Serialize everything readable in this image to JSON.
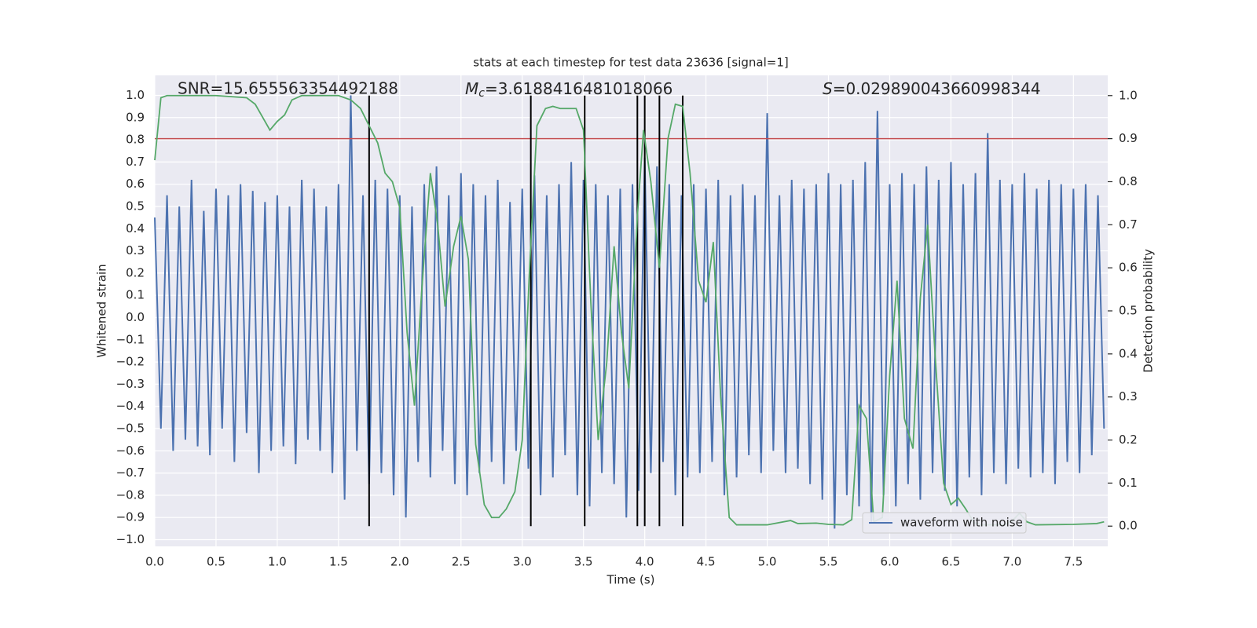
{
  "chart_data": {
    "type": "line",
    "title": "stats at each timestep for test data 23636 [signal=1]",
    "xlabel": "Time (s)",
    "ylabel": "Whitened strain",
    "y2label": "Detection probability",
    "snr_text": "SNR=15.655563354492188",
    "mc_text": {
      "symbol": "M",
      "subscript": "c",
      "rest": "=3.6188416481018066"
    },
    "s_text": {
      "symbol": "S",
      "rest": "=0.029890043660998344"
    },
    "xlim": [
      0,
      7.78
    ],
    "ylim": [
      -1.03,
      1.09
    ],
    "y2lim": [
      -0.047,
      1.047
    ],
    "xticks": [
      {
        "value": 0,
        "label": "0.0"
      },
      0.5,
      {
        "value": 1,
        "label": "1.0"
      },
      1.5,
      {
        "value": 2,
        "label": "2.0"
      },
      2.5,
      {
        "value": 3,
        "label": "3.0"
      },
      3.5,
      {
        "value": 4,
        "label": "4.0"
      },
      4.5,
      {
        "value": 5,
        "label": "5.0"
      },
      5.5,
      {
        "value": 6,
        "label": "6.0"
      },
      6.5,
      {
        "value": 7,
        "label": "7.0"
      },
      7.5
    ],
    "yticks": [
      {
        "value": 1,
        "label": "1.0"
      },
      0.9,
      0.8,
      0.7,
      0.6,
      0.5,
      0.4,
      0.3,
      0.2,
      0.1,
      {
        "value": 0,
        "label": "0.0"
      },
      {
        "value": -0.1,
        "label": "−0.1"
      },
      {
        "value": -0.2,
        "label": "−0.2"
      },
      {
        "value": -0.3,
        "label": "−0.3"
      },
      {
        "value": -0.4,
        "label": "−0.4"
      },
      {
        "value": -0.5,
        "label": "−0.5"
      },
      {
        "value": -0.6,
        "label": "−0.6"
      },
      {
        "value": -0.7,
        "label": "−0.7"
      },
      {
        "value": -0.8,
        "label": "−0.8"
      },
      {
        "value": -0.9,
        "label": "−0.9"
      },
      {
        "value": -1,
        "label": "−1.0"
      }
    ],
    "y2ticks": [
      {
        "value": 0,
        "label": "0.0"
      },
      0.1,
      0.2,
      0.3,
      0.4,
      0.5,
      0.6,
      0.7,
      0.8,
      0.9,
      {
        "value": 1,
        "label": "1.0"
      }
    ],
    "grid": true,
    "legend": "lower right",
    "threshold": {
      "value": 0.9,
      "axis": "y2",
      "color": "#c44e52"
    },
    "vlines": {
      "x": [
        1.75,
        3.07,
        3.51,
        3.94,
        4.0,
        4.12,
        4.31
      ],
      "color": "#000000",
      "axis": "y2",
      "from": 0,
      "to": 1
    },
    "series": [
      {
        "name": "waveform with noise",
        "color": "#4c72b0",
        "x": [
          0,
          0.05,
          0.1,
          0.15,
          0.2,
          0.25,
          0.3,
          0.35,
          0.4,
          0.45,
          0.5,
          0.55,
          0.6,
          0.65,
          0.7,
          0.75,
          0.8,
          0.85,
          0.9,
          0.95,
          1,
          1.05,
          1.1,
          1.15,
          1.2,
          1.25,
          1.3,
          1.35,
          1.4,
          1.45,
          1.5,
          1.55,
          1.6,
          1.65,
          1.7,
          1.75,
          1.8,
          1.85,
          1.9,
          1.95,
          2,
          2.05,
          2.1,
          2.15,
          2.2,
          2.25,
          2.3,
          2.35,
          2.4,
          2.45,
          2.5,
          2.55,
          2.6,
          2.65,
          2.7,
          2.75,
          2.8,
          2.85,
          2.9,
          2.95,
          3,
          3.05,
          3.1,
          3.15,
          3.2,
          3.25,
          3.3,
          3.35,
          3.4,
          3.45,
          3.5,
          3.55,
          3.6,
          3.65,
          3.7,
          3.75,
          3.8,
          3.85,
          3.9,
          3.95,
          4,
          4.05,
          4.1,
          4.15,
          4.2,
          4.25,
          4.3,
          4.35,
          4.4,
          4.45,
          4.5,
          4.55,
          4.6,
          4.65,
          4.7,
          4.75,
          4.8,
          4.85,
          4.9,
          4.95,
          5,
          5.05,
          5.1,
          5.15,
          5.2,
          5.25,
          5.3,
          5.35,
          5.4,
          5.45,
          5.5,
          5.55,
          5.6,
          5.65,
          5.7,
          5.75,
          5.8,
          5.85,
          5.9,
          5.95,
          6,
          6.05,
          6.1,
          6.15,
          6.2,
          6.25,
          6.3,
          6.35,
          6.4,
          6.45,
          6.5,
          6.55,
          6.6,
          6.65,
          6.7,
          6.75,
          6.8,
          6.85,
          6.9,
          6.95,
          7,
          7.05,
          7.1,
          7.15,
          7.2,
          7.25,
          7.3,
          7.35,
          7.4,
          7.45,
          7.5,
          7.55,
          7.6,
          7.65,
          7.7,
          7.75
        ],
        "values": [
          0.45,
          -0.5,
          0.55,
          -0.6,
          0.5,
          -0.55,
          0.62,
          -0.58,
          0.48,
          -0.62,
          0.58,
          -0.5,
          0.55,
          -0.65,
          0.6,
          -0.52,
          0.57,
          -0.7,
          0.52,
          -0.6,
          0.55,
          -0.58,
          0.5,
          -0.66,
          0.62,
          -0.55,
          0.58,
          -0.6,
          0.5,
          -0.7,
          0.6,
          -0.82,
          1.0,
          -0.6,
          0.55,
          -0.75,
          0.62,
          -0.7,
          0.58,
          -0.8,
          0.55,
          -0.9,
          0.5,
          -0.65,
          0.6,
          -0.72,
          0.68,
          -0.6,
          0.55,
          -0.75,
          0.65,
          -0.8,
          0.6,
          -0.7,
          0.55,
          -0.65,
          0.62,
          -0.75,
          0.52,
          -0.6,
          0.58,
          -0.68,
          0.64,
          -0.8,
          0.55,
          -0.72,
          0.6,
          -0.62,
          0.7,
          -0.8,
          0.62,
          -0.85,
          0.6,
          -0.7,
          0.55,
          -0.75,
          0.58,
          -0.9,
          0.6,
          -0.78,
          0.72,
          -0.7,
          0.68,
          -0.65,
          0.6,
          -0.8,
          0.55,
          -0.72,
          0.6,
          -0.7,
          0.58,
          -0.65,
          0.62,
          -0.8,
          0.55,
          -0.72,
          0.6,
          -0.62,
          0.55,
          -0.7,
          0.92,
          -0.6,
          0.55,
          -0.7,
          0.62,
          -0.68,
          0.58,
          -0.75,
          0.6,
          -0.82,
          0.65,
          -0.95,
          0.6,
          -0.8,
          0.62,
          -0.85,
          0.7,
          -0.92,
          0.93,
          -0.8,
          0.6,
          -0.85,
          0.65,
          -0.75,
          0.6,
          -0.82,
          0.68,
          -0.7,
          0.62,
          -0.78,
          0.7,
          -0.85,
          0.6,
          -0.72,
          0.65,
          -0.8,
          0.83,
          -0.7,
          0.62,
          -0.75,
          0.6,
          -0.68,
          0.65,
          -0.72,
          0.58,
          -0.7,
          0.62,
          -0.75,
          0.6,
          -0.65,
          0.58,
          -0.7,
          0.6,
          -0.62,
          0.55,
          -0.5
        ]
      },
      {
        "color": "#55a868",
        "axis": "y2",
        "x": [
          0,
          0.05,
          0.1,
          0.5,
          0.75,
          0.82,
          0.88,
          0.94,
          1.0,
          1.06,
          1.12,
          1.2,
          1.5,
          1.6,
          1.68,
          1.75,
          1.82,
          1.88,
          1.94,
          2.0,
          2.06,
          2.12,
          2.18,
          2.25,
          2.31,
          2.37,
          2.44,
          2.5,
          2.56,
          2.62,
          2.69,
          2.75,
          2.81,
          2.87,
          2.94,
          3.0,
          3.06,
          3.12,
          3.19,
          3.25,
          3.31,
          3.44,
          3.5,
          3.56,
          3.62,
          3.69,
          3.75,
          3.81,
          3.87,
          3.94,
          3.99,
          4.05,
          4.12,
          4.19,
          4.25,
          4.31,
          4.37,
          4.44,
          4.5,
          4.56,
          4.62,
          4.69,
          4.75,
          5.0,
          5.19,
          5.25,
          5.4,
          5.5,
          5.62,
          5.69,
          5.75,
          5.81,
          5.87,
          5.94,
          6.0,
          6.06,
          6.12,
          6.19,
          6.25,
          6.31,
          6.37,
          6.44,
          6.5,
          6.56,
          6.62,
          6.69,
          6.75,
          6.94,
          7.0,
          7.06,
          7.12,
          7.19,
          7.5,
          7.69,
          7.75
        ],
        "values": [
          0.85,
          0.995,
          1.0,
          1.0,
          0.995,
          0.98,
          0.95,
          0.92,
          0.94,
          0.955,
          0.99,
          1.0,
          1.0,
          0.99,
          0.97,
          0.93,
          0.89,
          0.82,
          0.8,
          0.74,
          0.45,
          0.28,
          0.55,
          0.82,
          0.7,
          0.51,
          0.65,
          0.72,
          0.62,
          0.19,
          0.05,
          0.02,
          0.02,
          0.04,
          0.08,
          0.2,
          0.6,
          0.93,
          0.97,
          0.975,
          0.97,
          0.97,
          0.92,
          0.52,
          0.2,
          0.38,
          0.65,
          0.45,
          0.32,
          0.72,
          0.92,
          0.8,
          0.6,
          0.9,
          0.98,
          0.975,
          0.82,
          0.57,
          0.52,
          0.66,
          0.3,
          0.02,
          0.003,
          0.003,
          0.013,
          0.006,
          0.007,
          0.004,
          0.003,
          0.015,
          0.28,
          0.25,
          0.01,
          0.02,
          0.35,
          0.57,
          0.25,
          0.18,
          0.53,
          0.7,
          0.4,
          0.1,
          0.05,
          0.065,
          0.04,
          0.008,
          0.003,
          0.003,
          0.012,
          0.03,
          0.01,
          0.003,
          0.004,
          0.006,
          0.01
        ]
      }
    ]
  }
}
